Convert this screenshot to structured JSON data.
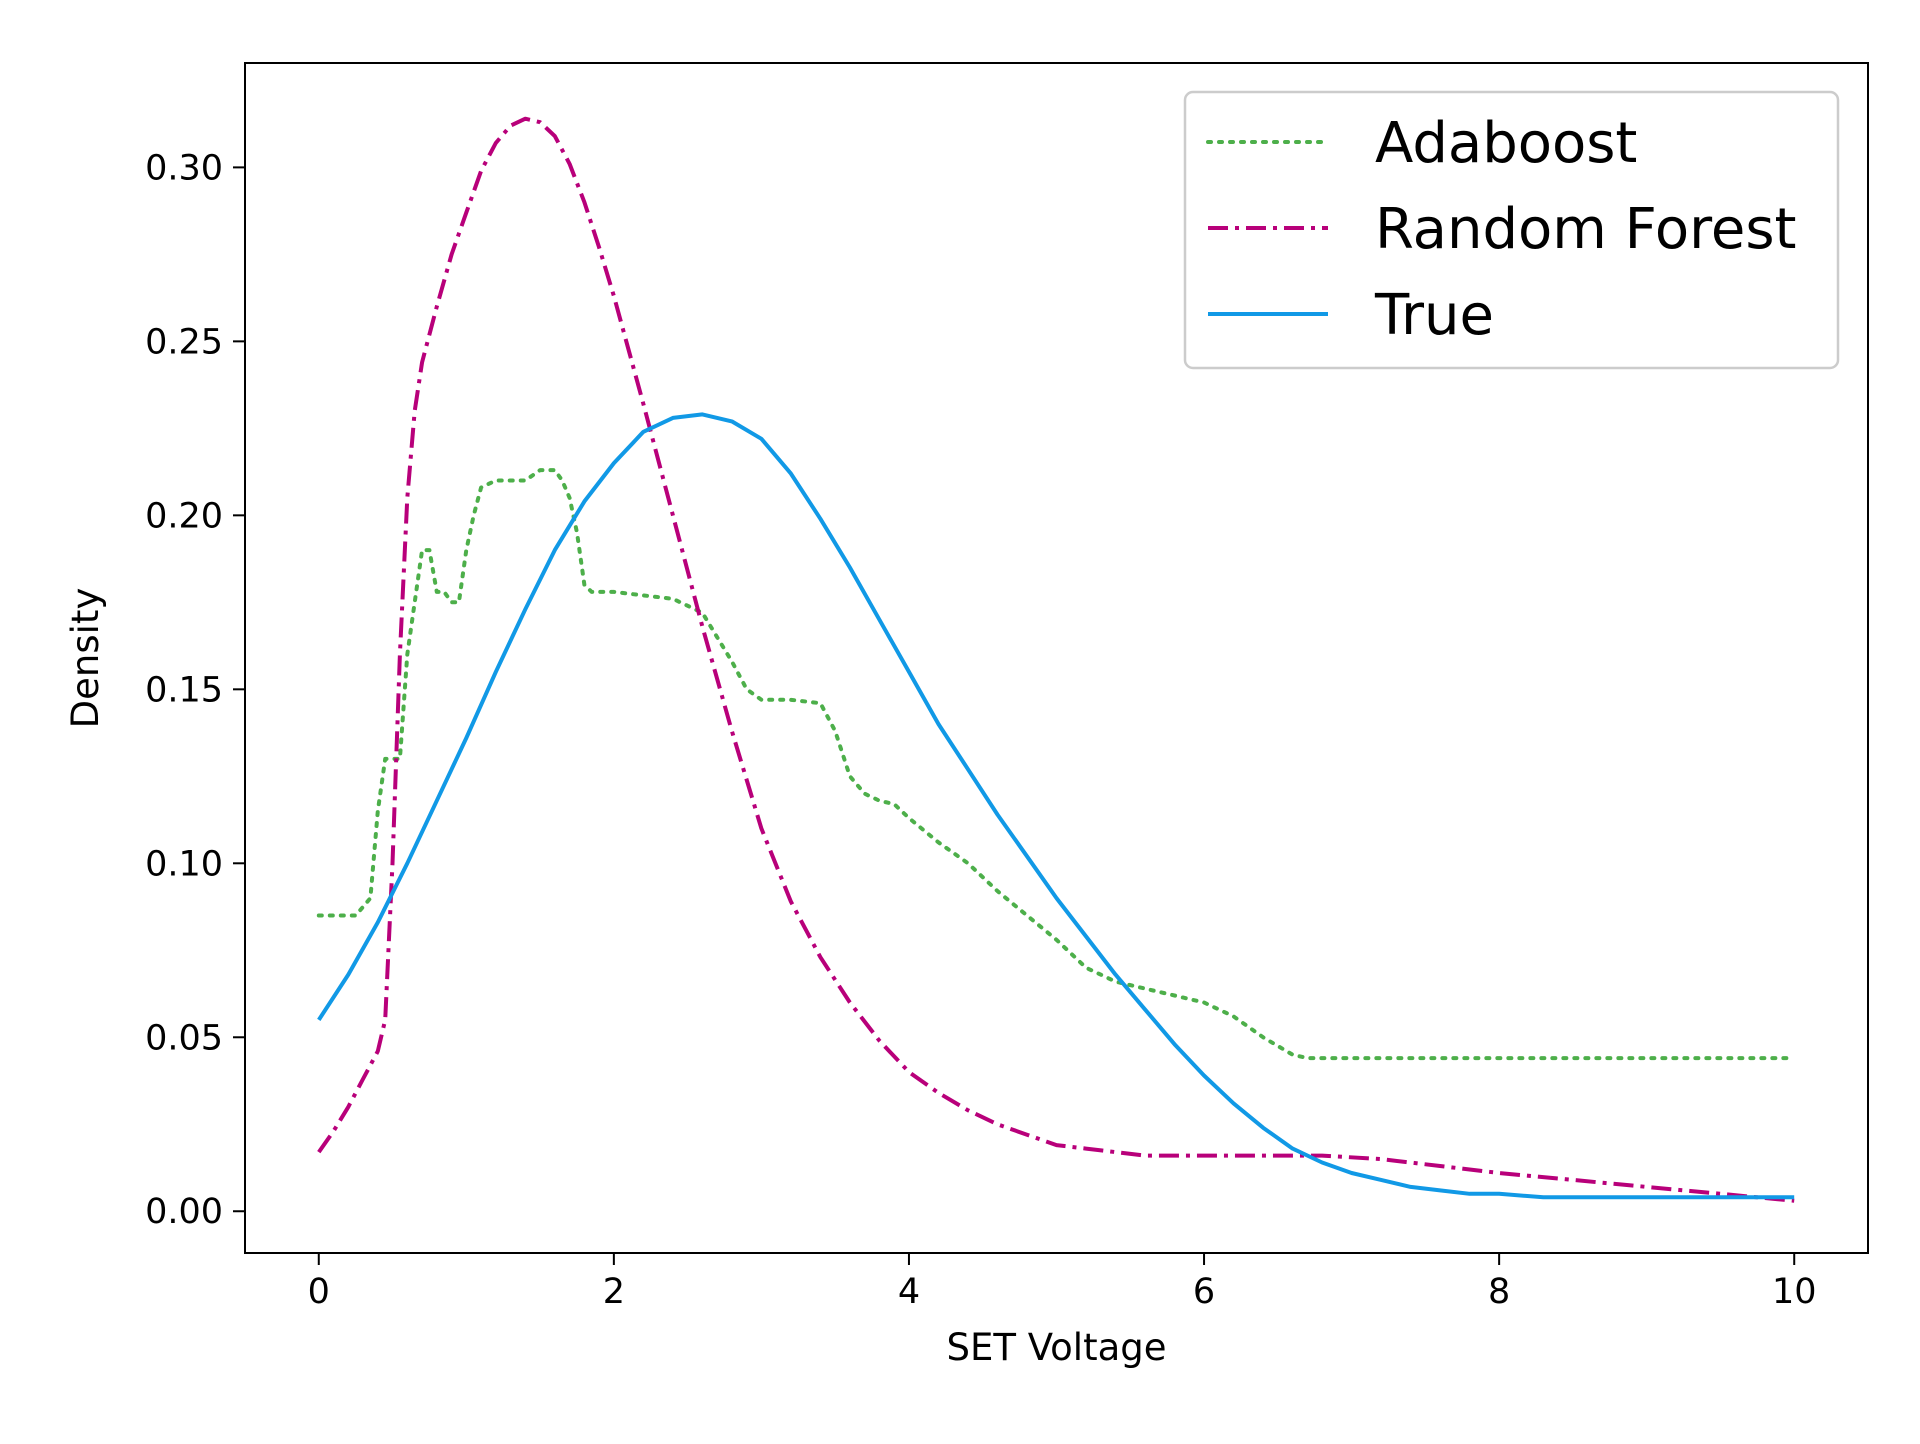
{
  "chart_data": {
    "type": "line",
    "title": "",
    "xlabel": "SET Voltage",
    "ylabel": "Density",
    "xlim": [
      -0.5,
      10.5
    ],
    "ylim": [
      -0.012,
      0.33
    ],
    "xticks": [
      0,
      2,
      4,
      6,
      8,
      10
    ],
    "xtick_labels": [
      "0",
      "2",
      "4",
      "6",
      "8",
      "10"
    ],
    "yticks": [
      0.0,
      0.05,
      0.1,
      0.15,
      0.2,
      0.25,
      0.3
    ],
    "ytick_labels": [
      "0.00",
      "0.05",
      "0.10",
      "0.15",
      "0.20",
      "0.25",
      "0.30"
    ],
    "grid": false,
    "legend_position": "top-right",
    "series": [
      {
        "name": "Adaboost",
        "color": "#4daf4a",
        "style": "dotted",
        "x": [
          0,
          0.25,
          0.35,
          0.4,
          0.45,
          0.55,
          0.6,
          0.65,
          0.7,
          0.75,
          0.8,
          0.85,
          0.9,
          0.95,
          1.0,
          1.05,
          1.1,
          1.2,
          1.3,
          1.4,
          1.5,
          1.6,
          1.65,
          1.7,
          1.75,
          1.8,
          1.85,
          1.9,
          2.0,
          2.2,
          2.4,
          2.6,
          2.7,
          2.8,
          2.9,
          3.0,
          3.1,
          3.2,
          3.4,
          3.5,
          3.6,
          3.7,
          3.8,
          3.9,
          4.0,
          4.2,
          4.4,
          4.6,
          4.8,
          5.0,
          5.2,
          5.4,
          5.6,
          5.8,
          6.0,
          6.2,
          6.4,
          6.6,
          6.7,
          7.0,
          8.0,
          9.0,
          10.0
        ],
        "y": [
          0.085,
          0.085,
          0.09,
          0.115,
          0.13,
          0.13,
          0.16,
          0.175,
          0.19,
          0.19,
          0.178,
          0.178,
          0.175,
          0.175,
          0.19,
          0.2,
          0.208,
          0.21,
          0.21,
          0.21,
          0.213,
          0.213,
          0.21,
          0.205,
          0.195,
          0.18,
          0.178,
          0.178,
          0.178,
          0.177,
          0.176,
          0.172,
          0.165,
          0.158,
          0.15,
          0.147,
          0.147,
          0.147,
          0.146,
          0.138,
          0.125,
          0.12,
          0.118,
          0.117,
          0.113,
          0.106,
          0.1,
          0.092,
          0.085,
          0.078,
          0.07,
          0.066,
          0.064,
          0.062,
          0.06,
          0.056,
          0.05,
          0.045,
          0.044,
          0.044,
          0.044,
          0.044,
          0.044
        ]
      },
      {
        "name": "Random Forest",
        "color": "#b8007a",
        "style": "dashdot",
        "x": [
          0,
          0.1,
          0.2,
          0.3,
          0.4,
          0.45,
          0.5,
          0.55,
          0.6,
          0.65,
          0.7,
          0.8,
          0.9,
          1.0,
          1.1,
          1.2,
          1.3,
          1.4,
          1.5,
          1.6,
          1.7,
          1.8,
          1.9,
          2.0,
          2.2,
          2.4,
          2.6,
          2.8,
          3.0,
          3.2,
          3.4,
          3.6,
          3.8,
          4.0,
          4.2,
          4.4,
          4.6,
          4.8,
          5.0,
          5.2,
          5.4,
          5.6,
          5.8,
          6.0,
          6.4,
          6.8,
          7.2,
          7.6,
          8.0,
          8.5,
          9.0,
          9.5,
          10.0
        ],
        "y": [
          0.017,
          0.023,
          0.03,
          0.038,
          0.046,
          0.055,
          0.1,
          0.16,
          0.205,
          0.23,
          0.244,
          0.26,
          0.275,
          0.287,
          0.299,
          0.307,
          0.312,
          0.314,
          0.313,
          0.309,
          0.301,
          0.29,
          0.277,
          0.263,
          0.232,
          0.2,
          0.168,
          0.138,
          0.11,
          0.089,
          0.073,
          0.06,
          0.049,
          0.04,
          0.034,
          0.029,
          0.025,
          0.022,
          0.019,
          0.018,
          0.017,
          0.016,
          0.016,
          0.016,
          0.016,
          0.016,
          0.015,
          0.013,
          0.011,
          0.009,
          0.007,
          0.005,
          0.003
        ]
      },
      {
        "name": "True",
        "color": "#1199e6",
        "style": "solid",
        "x": [
          0,
          0.2,
          0.4,
          0.6,
          0.8,
          1.0,
          1.2,
          1.4,
          1.6,
          1.8,
          2.0,
          2.2,
          2.4,
          2.6,
          2.8,
          3.0,
          3.2,
          3.4,
          3.6,
          3.8,
          4.0,
          4.2,
          4.4,
          4.6,
          4.8,
          5.0,
          5.2,
          5.4,
          5.6,
          5.8,
          6.0,
          6.2,
          6.4,
          6.6,
          6.8,
          7.0,
          7.2,
          7.4,
          7.6,
          7.8,
          8.0,
          8.3,
          8.6,
          9.0,
          9.5,
          10.0
        ],
        "y": [
          0.055,
          0.068,
          0.083,
          0.1,
          0.118,
          0.136,
          0.155,
          0.173,
          0.19,
          0.204,
          0.215,
          0.224,
          0.228,
          0.229,
          0.227,
          0.222,
          0.212,
          0.199,
          0.185,
          0.17,
          0.155,
          0.14,
          0.127,
          0.114,
          0.102,
          0.09,
          0.079,
          0.068,
          0.058,
          0.048,
          0.039,
          0.031,
          0.024,
          0.018,
          0.014,
          0.011,
          0.009,
          0.007,
          0.006,
          0.005,
          0.005,
          0.004,
          0.004,
          0.004,
          0.004,
          0.004
        ]
      }
    ]
  }
}
